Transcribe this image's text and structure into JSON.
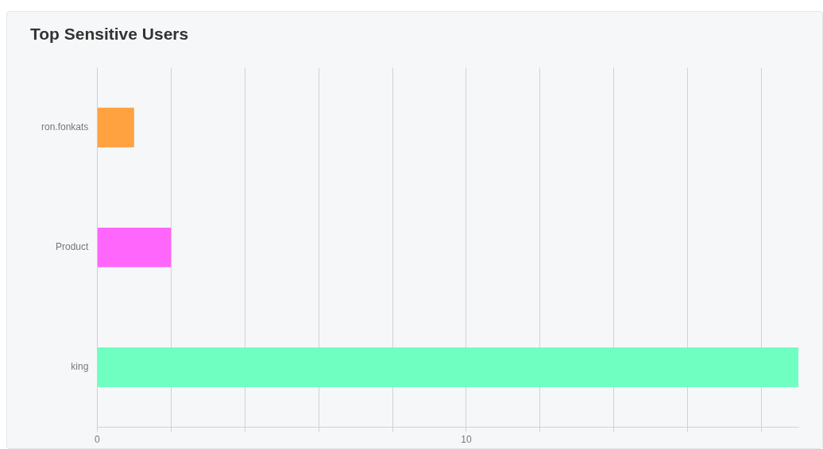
{
  "chart_data": {
    "type": "bar",
    "title": "Top Sensitive Users",
    "orientation": "horizontal",
    "categories": [
      "ron.fonkats",
      "Product",
      "king"
    ],
    "values": [
      1,
      2,
      19
    ],
    "colors": [
      "#ffa23f",
      "#ff66fb",
      "#6fffc0"
    ],
    "xlim": [
      0,
      19
    ],
    "xticks": [
      0,
      {
        "value": 2,
        "label": null
      },
      {
        "value": 4,
        "label": null
      },
      {
        "value": 6,
        "label": null
      },
      {
        "value": 8,
        "label": null
      },
      10,
      {
        "value": 12,
        "label": null
      },
      {
        "value": 14,
        "label": null
      },
      {
        "value": 16,
        "label": null
      },
      {
        "value": 18,
        "label": null
      }
    ],
    "grid": "x",
    "legend": false
  }
}
